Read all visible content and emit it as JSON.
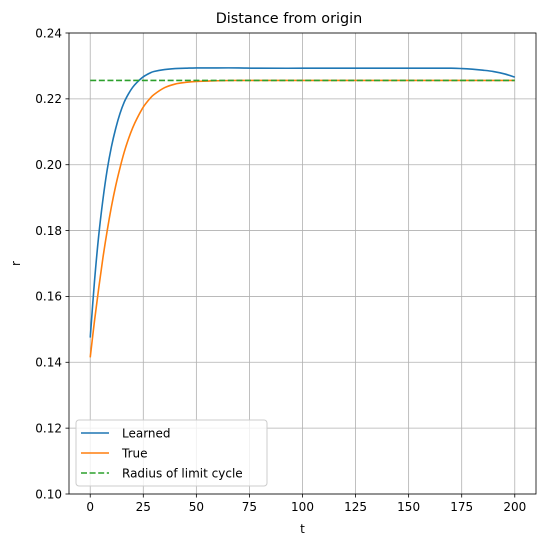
{
  "chart_data": {
    "type": "line",
    "title": "Distance from origin",
    "xlabel": "t",
    "ylabel": "r",
    "xlim": [
      -10,
      210
    ],
    "ylim": [
      0.1,
      0.24
    ],
    "x_ticks": [
      0,
      25,
      50,
      75,
      100,
      125,
      150,
      175,
      200
    ],
    "x_tick_labels": [
      "0",
      "25",
      "50",
      "75",
      "100",
      "125",
      "150",
      "175",
      "200"
    ],
    "y_ticks": [
      0.1,
      0.12,
      0.14,
      0.16,
      0.18,
      0.2,
      0.22,
      0.24
    ],
    "y_tick_labels": [
      "0.10",
      "0.12",
      "0.14",
      "0.16",
      "0.18",
      "0.20",
      "0.22",
      "0.24"
    ],
    "grid": true,
    "legend_position": "lower-left",
    "series": [
      {
        "name": "Learned",
        "color": "#1f77b4",
        "style": "solid",
        "x": [
          0,
          2,
          4,
          6,
          8,
          10,
          12,
          14,
          16,
          18,
          20,
          22,
          25,
          28,
          30,
          35,
          40,
          45,
          50,
          60,
          70,
          80,
          100,
          120,
          140,
          160,
          170,
          175,
          180,
          185,
          190,
          195,
          200
        ],
        "y": [
          0.1475,
          0.1645,
          0.1785,
          0.1895,
          0.1985,
          0.2055,
          0.211,
          0.2155,
          0.219,
          0.2215,
          0.2235,
          0.225,
          0.2267,
          0.2278,
          0.2283,
          0.2289,
          0.2292,
          0.2293,
          0.2294,
          0.2294,
          0.2294,
          0.2293,
          0.2293,
          0.2293,
          0.2293,
          0.2293,
          0.2293,
          0.2292,
          0.229,
          0.2287,
          0.2283,
          0.2276,
          0.2266
        ]
      },
      {
        "name": "True",
        "color": "#ff7f0e",
        "style": "solid",
        "x": [
          0,
          2,
          4,
          6,
          8,
          10,
          12,
          14,
          16,
          18,
          20,
          22,
          25,
          28,
          30,
          35,
          40,
          45,
          50,
          55,
          60,
          70,
          80,
          100,
          120,
          140,
          160,
          180,
          200
        ],
        "y": [
          0.1415,
          0.1525,
          0.1625,
          0.1718,
          0.18,
          0.1873,
          0.1936,
          0.199,
          0.2038,
          0.2078,
          0.2112,
          0.214,
          0.2175,
          0.22,
          0.2213,
          0.2234,
          0.2245,
          0.225,
          0.2253,
          0.2254,
          0.2255,
          0.2256,
          0.2256,
          0.2256,
          0.2256,
          0.2256,
          0.2256,
          0.2256,
          0.2256
        ]
      },
      {
        "name": "Radius of limit cycle",
        "color": "#2ca02c",
        "style": "dashed",
        "x": [
          0,
          200
        ],
        "y": [
          0.2256,
          0.2256
        ]
      }
    ]
  }
}
